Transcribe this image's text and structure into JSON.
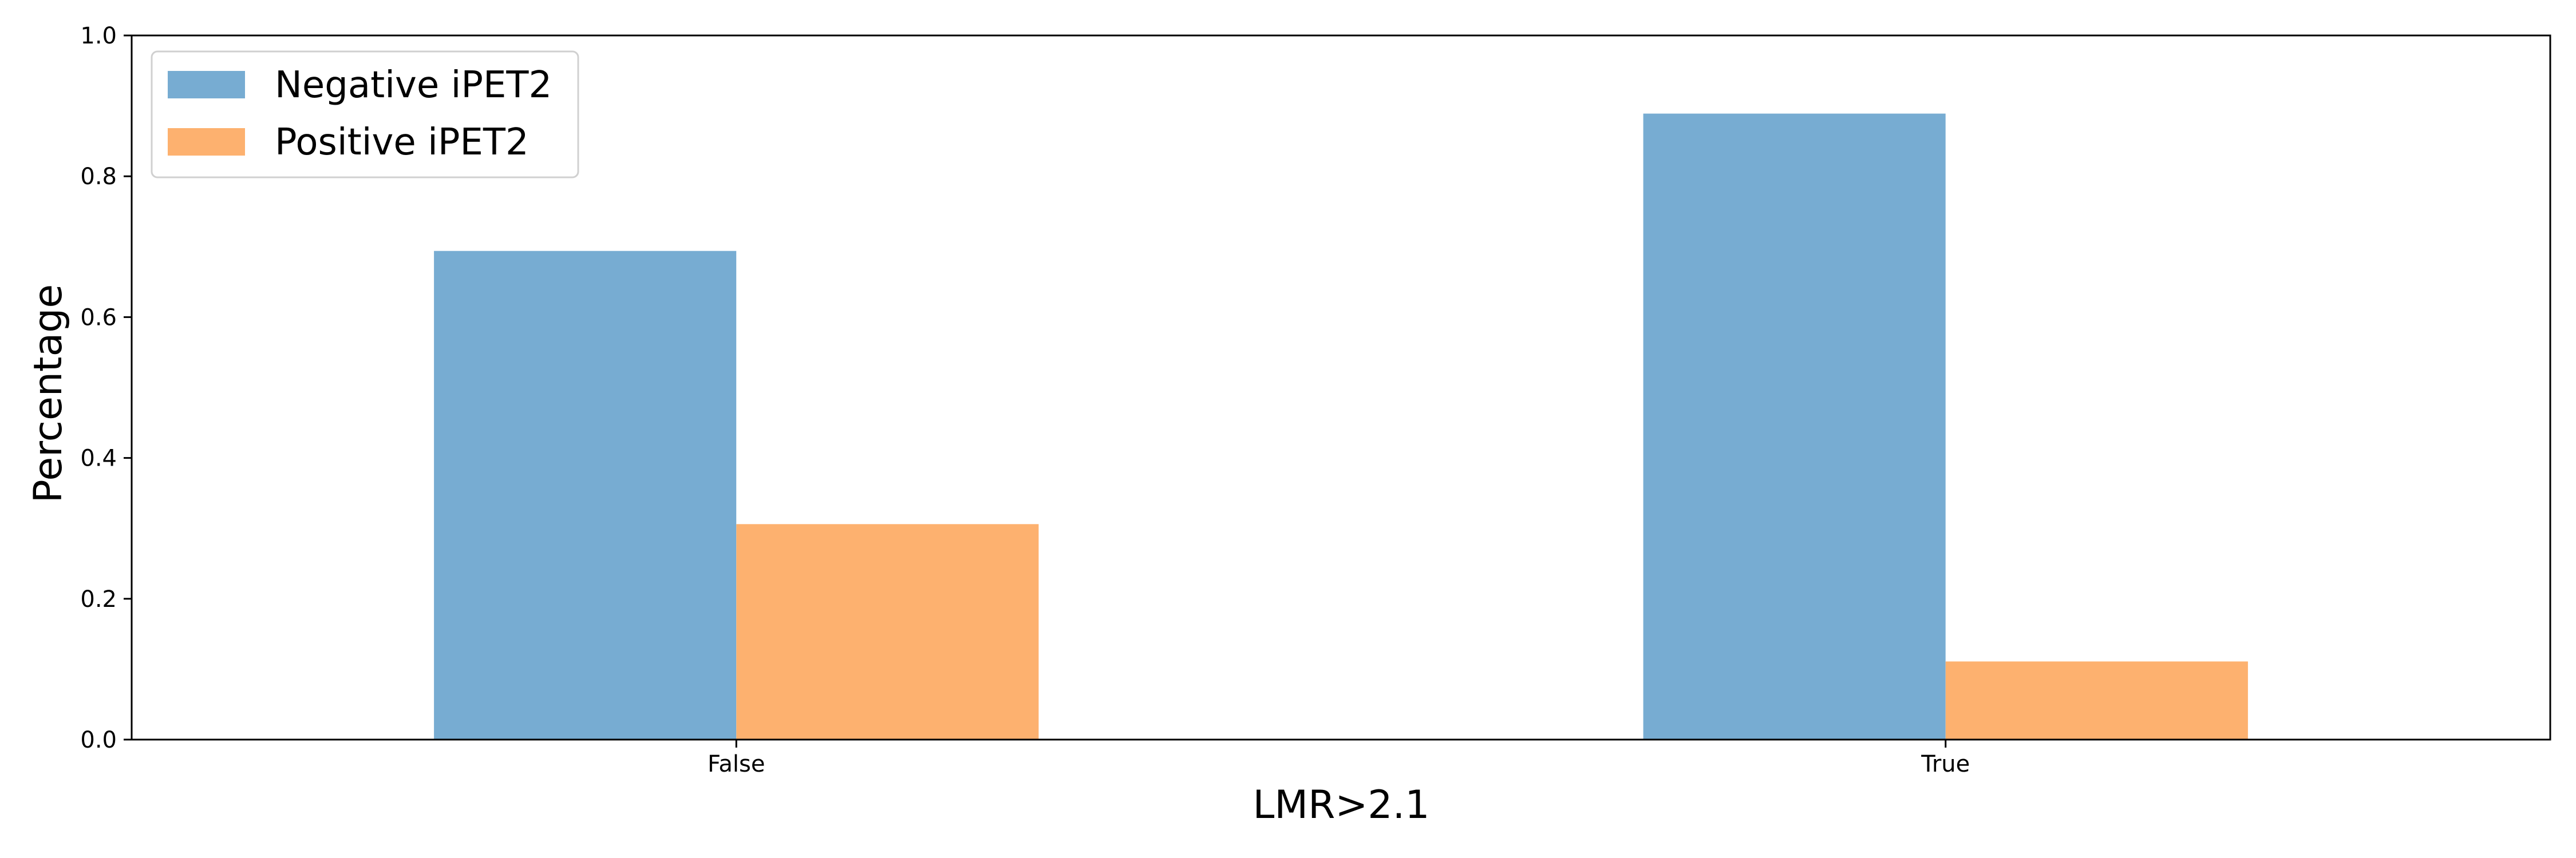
{
  "chart_data": {
    "type": "bar",
    "title": "",
    "xlabel": "LMR>2.1",
    "ylabel": "Percentage",
    "categories": [
      "False",
      "True"
    ],
    "series": [
      {
        "name": "Negative iPET2",
        "color": "#77acd2",
        "values": [
          0.694,
          0.889
        ]
      },
      {
        "name": "Positive iPET2",
        "color": "#fdb16f",
        "values": [
          0.306,
          0.111
        ]
      }
    ],
    "ylim": [
      0,
      1.0
    ],
    "yticks": [
      "0.0",
      "0.2",
      "0.4",
      "0.6",
      "0.8",
      "1.0"
    ],
    "grid": false,
    "legend_position": "top-left"
  }
}
